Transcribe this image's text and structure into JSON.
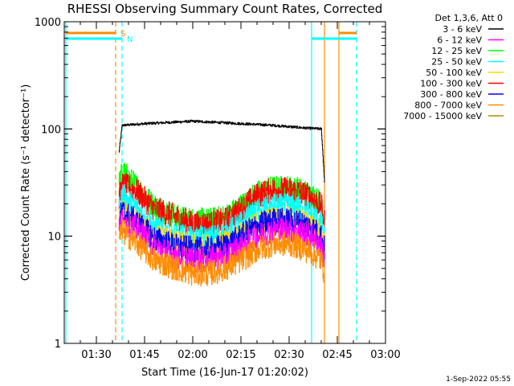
{
  "chart_data": {
    "type": "line",
    "title": "RHESSI Observing Summary Count Rates, Corrected",
    "xlabel": "Start Time (16-Jun-17 01:20:02)",
    "ylabel": "Corrected Count Rate (s⁻¹ detector⁻¹)",
    "yscale": "log",
    "ylim": [
      1,
      1000
    ],
    "yticks": [
      {
        "label": "1",
        "value": 1
      },
      {
        "label": "10",
        "value": 10
      },
      {
        "label": "100",
        "value": 100
      },
      {
        "label": "1000",
        "value": 1000
      }
    ],
    "xlim": [
      "01:20",
      "03:00"
    ],
    "xticks": [
      "01:30",
      "01:45",
      "02:00",
      "02:15",
      "02:30",
      "02:45",
      "03:00"
    ],
    "footer": "1-Sep-2022 05:55",
    "legend": {
      "title": "Det 1,3,6, Att 0",
      "position": "top-right outside",
      "entries": [
        {
          "label": "3 - 6 keV",
          "color": "#000000"
        },
        {
          "label": "6 - 12 keV",
          "color": "#ff00ff"
        },
        {
          "label": "12 - 25 keV",
          "color": "#00ff00"
        },
        {
          "label": "25 - 50 keV",
          "color": "#00ffff"
        },
        {
          "label": "50 - 100 keV",
          "color": "#ffd700"
        },
        {
          "label": "100 - 300 keV",
          "color": "#ff0000"
        },
        {
          "label": "300 - 800 keV",
          "color": "#0000ff"
        },
        {
          "label": "800 - 7000 keV",
          "color": "#ff8c00"
        },
        {
          "label": "7000 - 15000 keV",
          "color": "#b8860b"
        }
      ]
    },
    "series": [
      {
        "name": "3 - 6 keV",
        "color": "#000000",
        "x": [
          "01:37",
          "01:38",
          "01:45",
          "02:00",
          "02:15",
          "02:25",
          "02:35",
          "02:40",
          "02:41"
        ],
        "y": [
          60,
          108,
          112,
          118,
          112,
          108,
          102,
          100,
          32
        ]
      },
      {
        "name": "12 - 25 keV",
        "color": "#00ff00",
        "x": [
          "01:37",
          "01:38",
          "01:42",
          "01:48",
          "01:55",
          "02:00",
          "02:05",
          "02:10",
          "02:15",
          "02:20",
          "02:25",
          "02:30",
          "02:33",
          "02:37",
          "02:40",
          "02:41"
        ],
        "y": [
          30,
          40,
          30,
          19,
          15,
          14,
          14,
          15,
          19,
          25,
          28,
          28,
          27,
          24,
          20,
          14
        ]
      },
      {
        "name": "100 - 300 keV",
        "color": "#ff0000",
        "x": [
          "01:37",
          "01:38",
          "01:42",
          "01:48",
          "01:55",
          "02:00",
          "02:05",
          "02:10",
          "02:15",
          "02:20",
          "02:25",
          "02:30",
          "02:33",
          "02:37",
          "02:40",
          "02:41"
        ],
        "y": [
          22,
          30,
          27,
          18,
          15,
          13,
          13,
          14,
          18,
          24,
          27,
          27,
          26,
          23,
          19,
          13
        ]
      },
      {
        "name": "25 - 50 keV",
        "color": "#00ffff",
        "x": [
          "01:37",
          "01:38",
          "01:42",
          "01:48",
          "01:55",
          "02:00",
          "02:05",
          "02:10",
          "02:15",
          "02:20",
          "02:25",
          "02:30",
          "02:33",
          "02:37",
          "02:40",
          "02:41"
        ],
        "y": [
          18,
          24,
          19,
          12,
          10,
          9.5,
          9.5,
          10.5,
          13,
          17,
          19,
          19,
          18,
          16,
          13,
          9
        ]
      },
      {
        "name": "50 - 100 keV",
        "color": "#ffd700",
        "x": [
          "01:37",
          "01:38",
          "01:42",
          "01:48",
          "01:55",
          "02:00",
          "02:05",
          "02:10",
          "02:15",
          "02:20",
          "02:25",
          "02:30",
          "02:33",
          "02:37",
          "02:40",
          "02:41"
        ],
        "y": [
          14,
          17,
          14,
          10,
          8.5,
          8,
          8,
          8.5,
          10.5,
          13,
          14.5,
          14.5,
          14,
          12.5,
          10.5,
          8
        ]
      },
      {
        "name": "300 - 800 keV",
        "color": "#0000ff",
        "x": [
          "01:37",
          "01:38",
          "01:42",
          "01:48",
          "01:55",
          "02:00",
          "02:05",
          "02:10",
          "02:15",
          "02:20",
          "02:25",
          "02:30",
          "02:33",
          "02:37",
          "02:40",
          "02:41"
        ],
        "y": [
          14,
          17,
          14,
          9.5,
          8,
          7.5,
          7.5,
          8,
          10,
          12.5,
          14,
          14,
          13.5,
          12,
          10,
          7.5
        ]
      },
      {
        "name": "6 - 12 keV",
        "color": "#ff00ff",
        "x": [
          "01:37",
          "01:38",
          "01:42",
          "01:48",
          "01:55",
          "02:00",
          "02:05",
          "02:10",
          "02:15",
          "02:20",
          "02:25",
          "02:30",
          "02:33",
          "02:37",
          "02:40",
          "02:41"
        ],
        "y": [
          12,
          14,
          12,
          8,
          6.5,
          6,
          6,
          6.5,
          8,
          10,
          11.5,
          11.5,
          11,
          10,
          8,
          6
        ]
      },
      {
        "name": "800 - 7000 keV",
        "color": "#ff8c00",
        "x": [
          "01:37",
          "01:38",
          "01:42",
          "01:48",
          "01:55",
          "02:00",
          "02:05",
          "02:10",
          "02:15",
          "02:20",
          "02:25",
          "02:30",
          "02:33",
          "02:37",
          "02:40",
          "02:41"
        ],
        "y": [
          10,
          11,
          9,
          6,
          5,
          4.5,
          4.5,
          5,
          6,
          7.5,
          8.5,
          8.5,
          8,
          7,
          6,
          4.5
        ]
      }
    ],
    "vertical_markers": [
      {
        "x": "01:20:30",
        "color": "#00ffff",
        "style": "solid"
      },
      {
        "x": "01:36:00",
        "color": "#ff8c00",
        "style": "dashed"
      },
      {
        "x": "01:38:00",
        "color": "#00ffff",
        "style": "dashed"
      },
      {
        "x": "02:37:00",
        "color": "#00ffff",
        "style": "solid"
      },
      {
        "x": "02:41:00",
        "color": "#ff8c00",
        "style": "solid"
      },
      {
        "x": "02:45:30",
        "color": "#ff8c00",
        "style": "solid"
      },
      {
        "x": "02:51:00",
        "color": "#00ffff",
        "style": "dashed"
      }
    ],
    "flag_bars": [
      {
        "label": "S",
        "color": "#ff8c00",
        "level": "upper",
        "segments": [
          [
            "01:20:30",
            "01:36:00"
          ],
          [
            "02:45:30",
            "02:51:00"
          ]
        ]
      },
      {
        "label": "N",
        "color": "#00ffff",
        "level": "lower",
        "segments": [
          [
            "01:20:30",
            "01:38:00"
          ],
          [
            "02:37:00",
            "02:51:00"
          ]
        ]
      }
    ]
  }
}
